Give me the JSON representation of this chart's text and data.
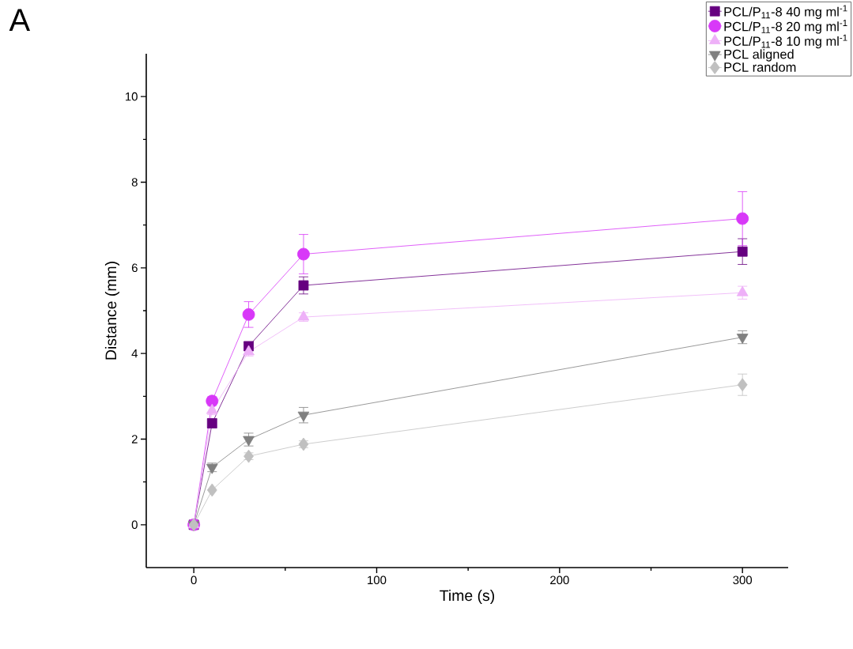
{
  "chart_data": {
    "type": "line",
    "xlabel": "Time (s)",
    "ylabel": "Distance (mm)",
    "annotations": [
      "A"
    ],
    "x": [
      0,
      10,
      30,
      60,
      300
    ],
    "xlim": [
      -26,
      325
    ],
    "ylim": [
      -1,
      11
    ],
    "xticks": [
      0,
      100,
      200,
      300
    ],
    "yticks": [
      0,
      2,
      4,
      6,
      8,
      10
    ],
    "grid": false,
    "legend": "top right",
    "line_style": "solid",
    "series": [
      {
        "name": "PCL/P$_{11}$-8 40 mg ml$^{-1}$",
        "color": "#660080",
        "marker": "square",
        "values": [
          0,
          2.37,
          4.17,
          5.59,
          6.38
        ],
        "errors": [
          null,
          0.1,
          0.1,
          0.2,
          0.3
        ]
      },
      {
        "name": "PCL/P$_{11}$-8 20 mg ml$^{-1}$",
        "color": "#d838f8",
        "marker": "circle",
        "values": [
          0,
          2.89,
          4.91,
          6.32,
          7.15
        ],
        "errors": [
          null,
          0.1,
          0.3,
          0.46,
          0.63
        ]
      },
      {
        "name": "PCL/P$_{11}$-8 10 mg ml$^{-1}$",
        "color": "#eeb0f8",
        "marker": "triangle",
        "values": [
          0,
          2.67,
          4.04,
          4.85,
          5.42
        ],
        "errors": [
          null,
          0.1,
          0.1,
          0.1,
          0.15
        ]
      },
      {
        "name": "PCL aligned",
        "color": "#808080",
        "marker": "triangle-down",
        "values": [
          0,
          1.34,
          1.99,
          2.56,
          4.38
        ],
        "errors": [
          null,
          0.1,
          0.15,
          0.18,
          0.15
        ]
      },
      {
        "name": "PCL random",
        "color": "#c0c0c0",
        "marker": "diamond",
        "values": [
          0,
          0.81,
          1.6,
          1.88,
          3.27
        ],
        "errors": [
          null,
          null,
          0.08,
          0.08,
          0.25
        ]
      }
    ]
  }
}
